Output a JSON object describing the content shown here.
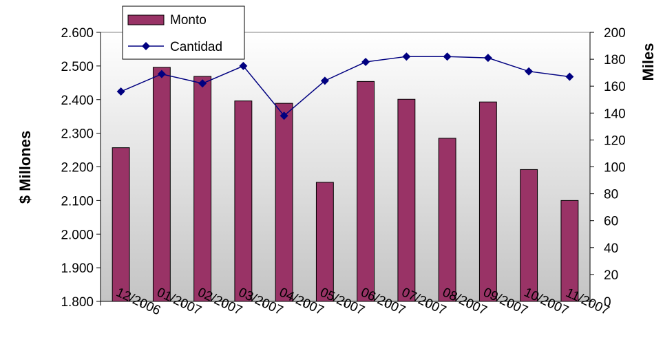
{
  "chart_data": {
    "type": "bar",
    "categories": [
      "12/2006",
      "01/2007",
      "02/2007",
      "03/2007",
      "04/2007",
      "05/2007",
      "06/2007",
      "07/2007",
      "08/2007",
      "09/2007",
      "10/2007",
      "11/2007"
    ],
    "series": [
      {
        "name": "Monto",
        "type": "bar",
        "axis": "left",
        "color": "#993366",
        "values": [
          2257,
          2496,
          2469,
          2396,
          2389,
          2154,
          2454,
          2401,
          2285,
          2393,
          2192,
          2100
        ]
      },
      {
        "name": "Cantidad",
        "type": "line",
        "axis": "right",
        "color": "#000080",
        "values": [
          156,
          169,
          162,
          175,
          138,
          164,
          178,
          182,
          182,
          181,
          171,
          167
        ]
      }
    ],
    "ylabel_left": "$ Millones",
    "ylabel_right": "Miles",
    "ylim_left": [
      1800,
      2600
    ],
    "ylim_right": [
      0,
      200
    ],
    "yticks_left": [
      "1.800",
      "1.900",
      "2.000",
      "2.100",
      "2.200",
      "2.300",
      "2.400",
      "2.500",
      "2.600"
    ],
    "yticks_right": [
      "0",
      "20",
      "40",
      "60",
      "80",
      "100",
      "120",
      "140",
      "160",
      "180",
      "200"
    ],
    "grid": false,
    "legend_position": "top-left"
  }
}
